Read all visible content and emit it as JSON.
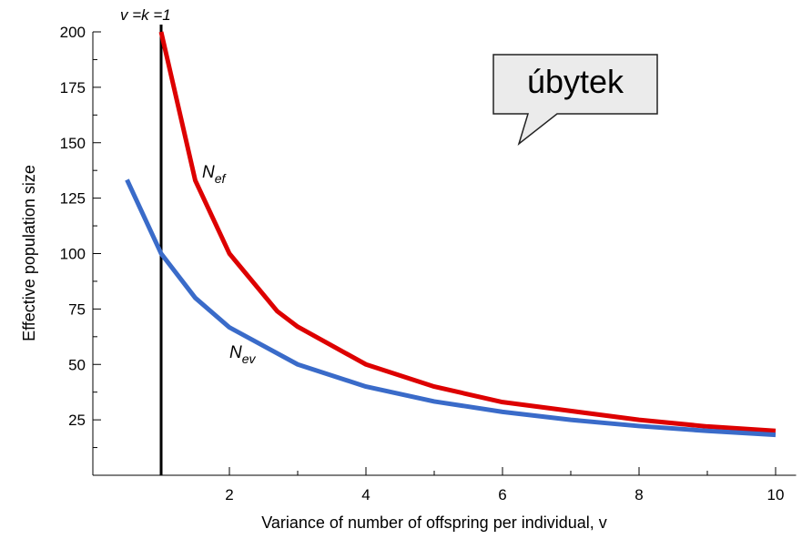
{
  "chart_data": {
    "type": "line",
    "x_label": "Variance of number of offspring per individual, v",
    "y_label": "Effective population size",
    "xlim": [
      0,
      10.3
    ],
    "ylim": [
      0,
      200
    ],
    "xticks": [
      2,
      4,
      6,
      8,
      10
    ],
    "xminorticks": [
      1,
      3,
      5,
      7,
      9
    ],
    "yticks": [
      25,
      50,
      75,
      100,
      125,
      150,
      175,
      200
    ],
    "yminorticks": [
      12.5,
      37.5,
      62.5,
      87.5,
      112.5,
      137.5,
      162.5,
      187.5
    ],
    "series": [
      {
        "name": "N_ef",
        "color": "#dd0000",
        "x": [
          1,
          1.5,
          2,
          2.7,
          3,
          4,
          5,
          6,
          7,
          8,
          9,
          10
        ],
        "values": [
          200,
          133,
          100,
          74,
          67,
          50,
          40,
          33,
          29,
          25,
          22,
          20
        ]
      },
      {
        "name": "N_ev",
        "color": "#3a6bc9",
        "x": [
          0.5,
          1,
          1.5,
          2,
          3,
          4,
          5,
          6,
          7,
          8,
          9,
          10
        ],
        "values": [
          133.3,
          100,
          80,
          66.7,
          50,
          40,
          33.3,
          28.6,
          25,
          22.2,
          20,
          18.2
        ]
      }
    ],
    "vline": {
      "x": 1,
      "label": "v =k  =1"
    },
    "annotations": [
      {
        "text": "N",
        "sub": "ef"
      },
      {
        "text": "N",
        "sub": "ev"
      }
    ],
    "callout": "úbytek"
  }
}
